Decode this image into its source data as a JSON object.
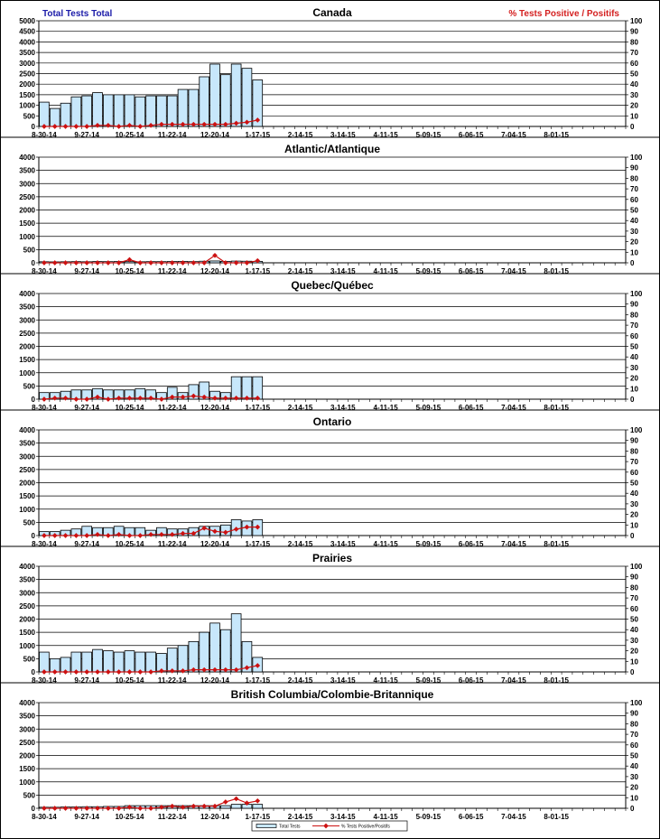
{
  "header": {
    "left_label": "Total Tests Total",
    "right_label": "% Tests Positive / Positifs",
    "left_color": "#1a1aa8",
    "right_color": "#d42020"
  },
  "legend": {
    "bar_label": "Total Tests",
    "line_label": "% Tests Positive/Positifs"
  },
  "colors": {
    "bar_fill": "#c7e7fb",
    "bar_stroke": "#000000",
    "line": "#cc1111"
  },
  "x_tick_labels": [
    "8-30-14",
    "9-27-14",
    "10-25-14",
    "11-22-14",
    "12-20-14",
    "1-17-15",
    "2-14-15",
    "3-14-15",
    "4-11-15",
    "5-09-15",
    "6-06-15",
    "7-04-15",
    "8-01-15"
  ],
  "chart_data": [
    {
      "type": "bar",
      "title": "Canada",
      "ylim": [
        0,
        5000
      ],
      "yticks": [
        0,
        500,
        1000,
        1500,
        2000,
        2500,
        3000,
        3500,
        4000,
        4500,
        5000
      ],
      "y2lim": [
        0,
        100
      ],
      "y2ticks": [
        0,
        10,
        20,
        30,
        40,
        50,
        60,
        70,
        80,
        90,
        100
      ],
      "series": [
        {
          "name": "Total Tests",
          "axis": "left",
          "values": [
            1150,
            850,
            1100,
            1400,
            1450,
            1600,
            1500,
            1500,
            1500,
            1400,
            1450,
            1450,
            1450,
            1750,
            1750,
            2350,
            2950,
            2450,
            2950,
            2750,
            2200
          ]
        },
        {
          "name": "% Tests Positive/Positifs",
          "axis": "right",
          "values": [
            0,
            0,
            0,
            0,
            0,
            1,
            1,
            0,
            1,
            0,
            1,
            2,
            2,
            2,
            2,
            2,
            2,
            2,
            3,
            4,
            6
          ]
        }
      ]
    },
    {
      "type": "bar",
      "title": "Atlantic/Atlantique",
      "ylim": [
        0,
        4000
      ],
      "yticks": [
        0,
        500,
        1000,
        1500,
        2000,
        2500,
        3000,
        3500,
        4000
      ],
      "y2lim": [
        0,
        100
      ],
      "y2ticks": [
        0,
        10,
        20,
        30,
        40,
        50,
        60,
        70,
        80,
        90,
        100
      ],
      "series": [
        {
          "name": "Total Tests",
          "axis": "left",
          "values": [
            40,
            35,
            40,
            45,
            40,
            50,
            45,
            50,
            45,
            40,
            45,
            45,
            50,
            55,
            45,
            60,
            70,
            55,
            65,
            60,
            55
          ]
        },
        {
          "name": "% Tests Positive/Positifs",
          "axis": "right",
          "values": [
            0,
            0,
            0,
            0,
            0,
            0,
            0,
            0,
            3,
            0,
            0,
            0,
            0,
            0,
            0,
            0,
            7,
            0,
            0,
            0,
            2
          ]
        }
      ]
    },
    {
      "type": "bar",
      "title": "Quebec/Québec",
      "ylim": [
        0,
        4000
      ],
      "yticks": [
        0,
        500,
        1000,
        1500,
        2000,
        2500,
        3000,
        3500,
        4000
      ],
      "y2lim": [
        0,
        100
      ],
      "y2ticks": [
        0,
        10,
        20,
        30,
        40,
        50,
        60,
        70,
        80,
        90,
        100
      ],
      "series": [
        {
          "name": "Total Tests",
          "axis": "left",
          "values": [
            250,
            250,
            300,
            350,
            350,
            400,
            350,
            350,
            350,
            400,
            350,
            250,
            450,
            250,
            550,
            650,
            300,
            250,
            850,
            850,
            850
          ]
        },
        {
          "name": "% Tests Positive/Positifs",
          "axis": "right",
          "values": [
            0,
            1,
            1,
            0,
            0,
            2,
            0,
            1,
            1,
            1,
            1,
            0,
            2,
            2,
            3,
            2,
            1,
            1,
            1,
            1,
            1
          ]
        }
      ]
    },
    {
      "type": "bar",
      "title": "Ontario",
      "ylim": [
        0,
        4000
      ],
      "yticks": [
        0,
        500,
        1000,
        1500,
        2000,
        2500,
        3000,
        3500,
        4000
      ],
      "y2lim": [
        0,
        100
      ],
      "y2ticks": [
        0,
        10,
        20,
        30,
        40,
        50,
        60,
        70,
        80,
        90,
        100
      ],
      "series": [
        {
          "name": "Total Tests",
          "axis": "left",
          "values": [
            150,
            150,
            200,
            250,
            350,
            300,
            300,
            350,
            300,
            300,
            200,
            300,
            250,
            250,
            300,
            350,
            350,
            400,
            600,
            550,
            600
          ]
        },
        {
          "name": "% Tests Positive/Positifs",
          "axis": "right",
          "values": [
            0,
            0,
            0,
            0,
            0,
            1,
            0,
            1,
            0,
            0,
            1,
            1,
            1,
            2,
            2,
            7,
            4,
            3,
            6,
            8,
            8
          ]
        }
      ]
    },
    {
      "type": "bar",
      "title": "Prairies",
      "ylim": [
        0,
        4000
      ],
      "yticks": [
        0,
        500,
        1000,
        1500,
        2000,
        2500,
        3000,
        3500,
        4000
      ],
      "y2lim": [
        0,
        100
      ],
      "y2ticks": [
        0,
        10,
        20,
        30,
        40,
        50,
        60,
        70,
        80,
        90,
        100
      ],
      "series": [
        {
          "name": "Total Tests",
          "axis": "left",
          "values": [
            750,
            500,
            550,
            750,
            750,
            850,
            800,
            750,
            800,
            750,
            750,
            700,
            900,
            1000,
            1150,
            1500,
            1850,
            1600,
            2200,
            1150,
            550
          ]
        },
        {
          "name": "% Tests Positive/Positifs",
          "axis": "right",
          "values": [
            0,
            0,
            0,
            0,
            0,
            0,
            0,
            0,
            0,
            0,
            0,
            1,
            1,
            1,
            2,
            2,
            2,
            2,
            2,
            4,
            6
          ]
        }
      ]
    },
    {
      "type": "bar",
      "title": "British Columbia/Colombie-Britannique",
      "ylim": [
        0,
        4000
      ],
      "yticks": [
        0,
        500,
        1000,
        1500,
        2000,
        2500,
        3000,
        3500,
        4000
      ],
      "y2lim": [
        0,
        100
      ],
      "y2ticks": [
        0,
        10,
        20,
        30,
        40,
        50,
        60,
        70,
        80,
        90,
        100
      ],
      "series": [
        {
          "name": "Total Tests",
          "axis": "left",
          "values": [
            40,
            40,
            50,
            50,
            60,
            60,
            70,
            70,
            100,
            100,
            100,
            100,
            100,
            100,
            100,
            100,
            100,
            100,
            150,
            150,
            150
          ]
        },
        {
          "name": "% Tests Positive/Positifs",
          "axis": "right",
          "values": [
            0,
            0,
            0,
            0,
            0,
            0,
            0,
            0,
            1,
            0,
            0,
            1,
            2,
            1,
            2,
            2,
            2,
            6,
            9,
            5,
            7
          ]
        }
      ]
    }
  ]
}
